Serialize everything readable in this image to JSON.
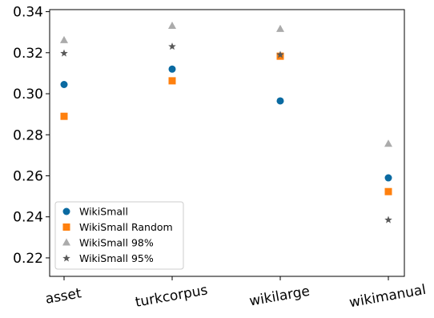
{
  "chart_data": {
    "type": "scatter",
    "title": "",
    "xlabel": "",
    "ylabel": "",
    "categories": [
      "asset",
      "turkcorpus",
      "wikilarge",
      "wikimanual"
    ],
    "ylim": [
      0.211,
      0.341
    ],
    "yticks": [
      0.22,
      0.24,
      0.26,
      0.28,
      0.3,
      0.32,
      0.34
    ],
    "ytick_labels": [
      "0.22",
      "0.24",
      "0.26",
      "0.28",
      "0.30",
      "0.32",
      "0.34"
    ],
    "xtick_rotation_deg": 10,
    "grid": false,
    "legend": {
      "position": "lower-left"
    },
    "series": [
      {
        "name": "WikiSmall",
        "marker": "circle",
        "color": "#0a6aa1",
        "values": [
          0.3045,
          0.312,
          0.2965,
          0.259
        ]
      },
      {
        "name": "WikiSmall Random",
        "marker": "square",
        "color": "#ff800e",
        "values": [
          0.289,
          0.3063,
          0.3183,
          0.2523
        ]
      },
      {
        "name": "WikiSmall 98%",
        "marker": "triangle",
        "color": "#ababab",
        "values": [
          0.326,
          0.333,
          0.3315,
          0.2755
        ]
      },
      {
        "name": "WikiSmall 95%",
        "marker": "star",
        "color": "#595959",
        "values": [
          0.3197,
          0.323,
          0.319,
          0.2385
        ]
      }
    ]
  }
}
